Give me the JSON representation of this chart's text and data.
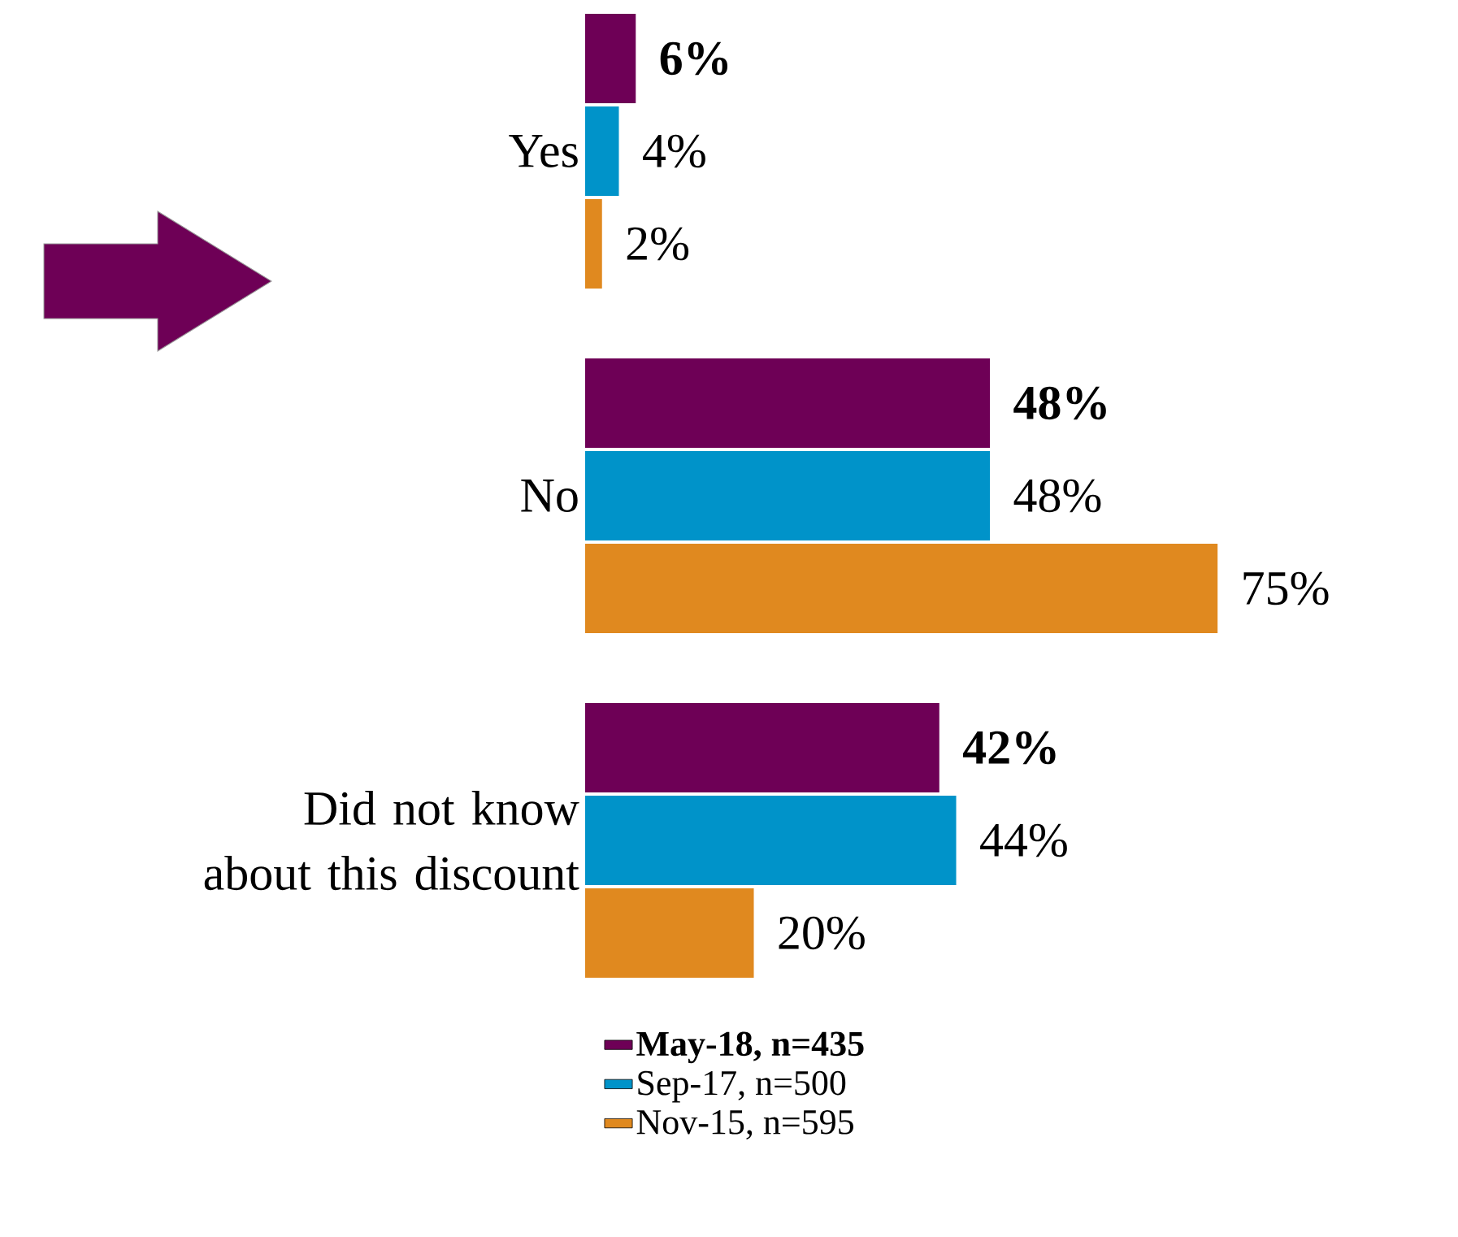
{
  "chart_data": {
    "type": "bar",
    "orientation": "horizontal",
    "categories": [
      "Yes",
      "No",
      "Did not know about this discount"
    ],
    "series": [
      {
        "name": "May-18, n=435",
        "color": "#6e0056",
        "values": [
          6,
          48,
          42
        ],
        "value_labels": [
          "6%",
          "48%",
          "42%"
        ]
      },
      {
        "name": "Sep-17, n=500",
        "color": "#0093c9",
        "values": [
          4,
          48,
          44
        ],
        "value_labels": [
          "4%",
          "48%",
          "44%"
        ]
      },
      {
        "name": "Nov-15, n=595",
        "color": "#e0891f",
        "values": [
          2,
          75,
          20
        ],
        "value_labels": [
          "2%",
          "75%",
          "20%"
        ]
      }
    ],
    "legend": "bottom"
  }
}
